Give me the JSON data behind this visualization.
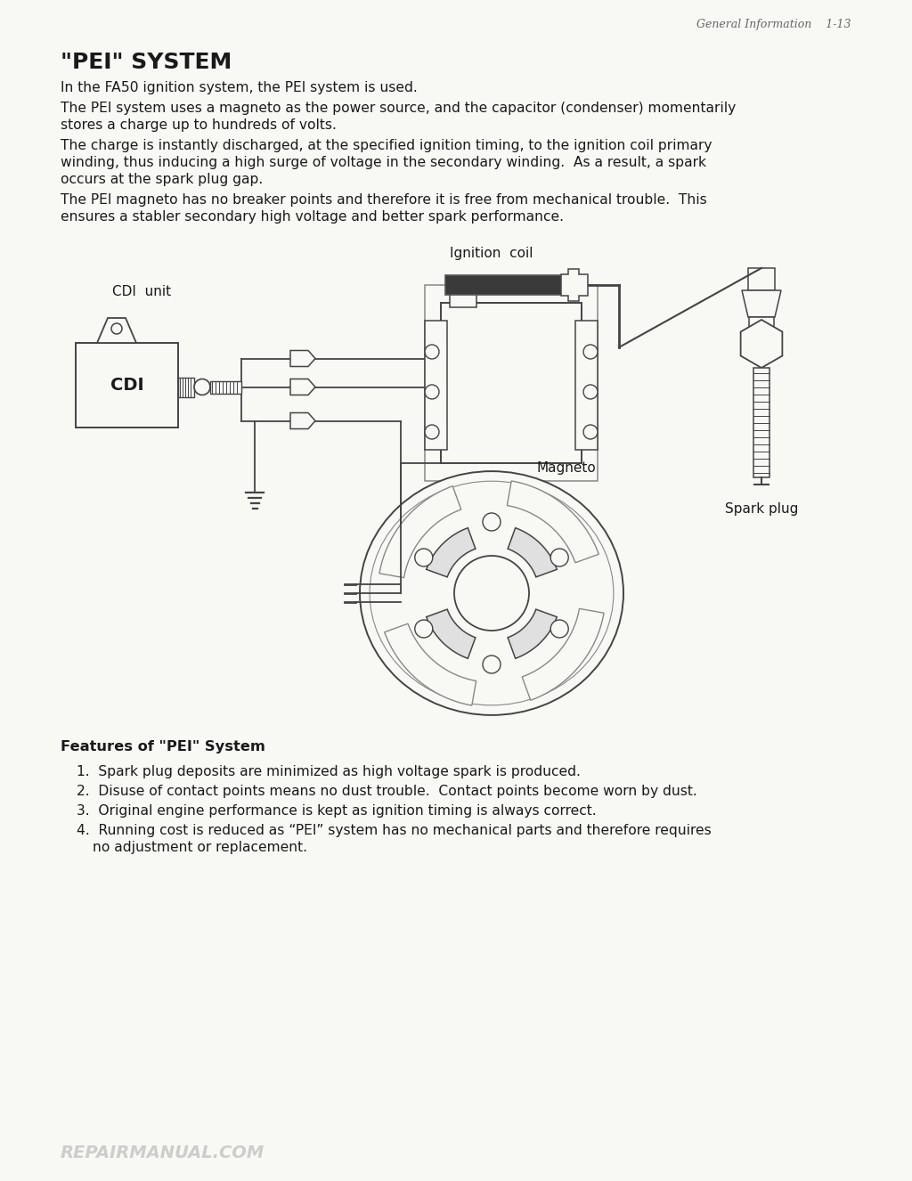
{
  "bg_color": "#f8f8f5",
  "text_color": "#1a1a1a",
  "header_text": "General Information    1-13",
  "title": "\"PEI\" SYSTEM",
  "para1": "In the FA50 ignition system, the PEI system is used.",
  "para2": "The PEI system uses a magneto as the power source, and the capacitor (condenser) momentarily stores a charge up to hundreds of volts.",
  "para3": "The charge is instantly discharged, at the specified ignition timing, to the ignition coil primary winding, thus inducing a high surge of voltage in the secondary winding.  As a result, a spark occurs at the spark plug gap.",
  "para4": "The PEI magneto has no breaker points and therefore it is free from mechanical trouble.  This ensures a stabler secondary high voltage and better spark performance.",
  "label_cdi_unit": "CDI  unit",
  "label_cdi": "CDI",
  "label_ignition_coil": "Ignition  coil",
  "label_magneto": "Magneto",
  "label_spark_plug": "Spark plug",
  "features_title": "Features of \"PEI\" System",
  "feature1": "Spark plug deposits are minimized as high voltage spark is produced.",
  "feature2": "Disuse of contact points means no dust trouble.  Contact points become worn by dust.",
  "feature3": "Original engine performance is kept as ignition timing is always correct.",
  "feature4a": "Running cost is reduced as “PEI” system has no mechanical parts and therefore requires",
  "feature4b": "no adjustment or replacement.",
  "footer": "REPAIRMANUAL.COM",
  "line_color": "#444444",
  "dark_color": "#222222"
}
